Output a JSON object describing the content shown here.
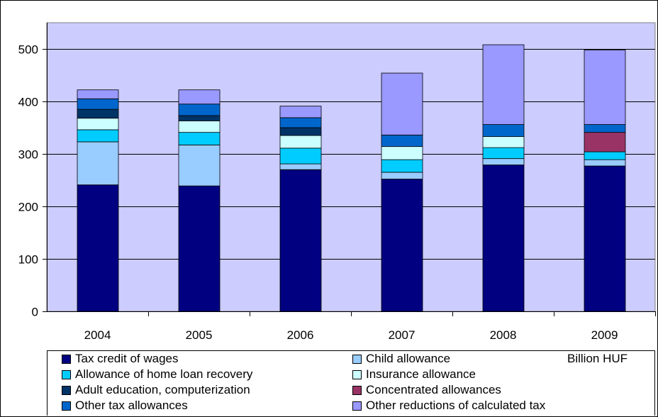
{
  "chart_data": {
    "type": "bar",
    "stacked": true,
    "categories": [
      "2004",
      "2005",
      "2006",
      "2007",
      "2008",
      "2009"
    ],
    "ylim": [
      0,
      550
    ],
    "yticks": [
      0,
      100,
      200,
      300,
      400,
      500
    ],
    "grid": true,
    "unit_label": "Billion HUF",
    "plot_background": "#ccccff",
    "legend_position": "bottom",
    "series": [
      {
        "name": "Tax credit of wages",
        "color": "#000080",
        "values": [
          241,
          239,
          270,
          252,
          279,
          277
        ]
      },
      {
        "name": "Child allowance",
        "color": "#99ccff",
        "values": [
          82,
          78,
          11,
          13,
          12,
          12
        ]
      },
      {
        "name": "Allowance of home loan recovery",
        "color": "#00ccff",
        "values": [
          23,
          24,
          30,
          24,
          21,
          15
        ]
      },
      {
        "name": "Insurance allowance",
        "color": "#ccffff",
        "values": [
          22,
          22,
          24,
          25,
          21,
          0
        ]
      },
      {
        "name": "Adult education, computerization",
        "color": "#003366",
        "values": [
          17,
          10,
          15,
          0,
          0,
          0
        ]
      },
      {
        "name": "Concentrated allowances",
        "color": "#993366",
        "values": [
          0,
          0,
          0,
          0,
          0,
          37
        ]
      },
      {
        "name": "Other tax allowances",
        "color": "#0066cc",
        "values": [
          20,
          22,
          19,
          22,
          23,
          15
        ]
      },
      {
        "name": "Other reductions of calculated tax",
        "color": "#9999ff",
        "values": [
          17,
          27,
          22,
          118,
          152,
          142
        ]
      }
    ]
  }
}
